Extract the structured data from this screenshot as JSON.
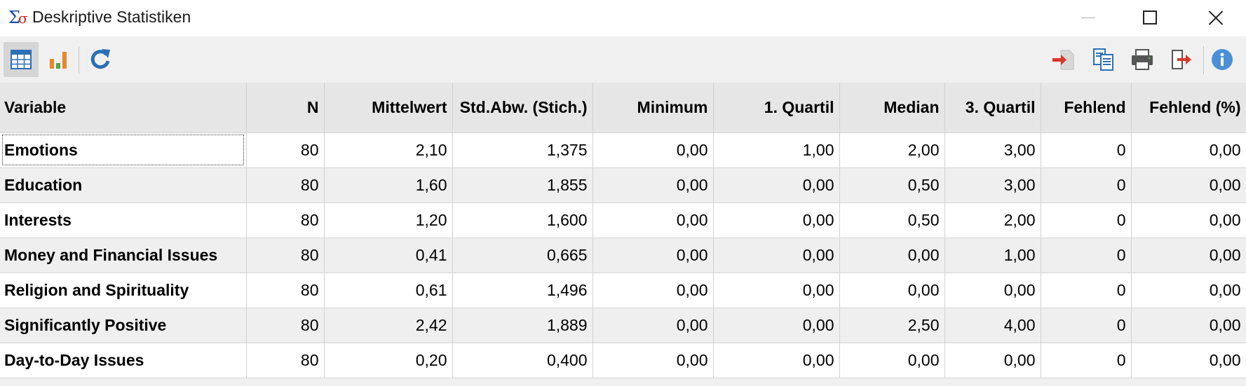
{
  "window": {
    "title": "Deskriptive Statistiken",
    "app_icon_glyphs": [
      "Σ",
      "σ"
    ]
  },
  "toolbar": {
    "left_icons": [
      "table-view-icon",
      "chart-view-icon",
      "refresh-icon"
    ],
    "right_icons": [
      "import-icon",
      "copy-icon",
      "print-icon",
      "export-icon",
      "info-icon"
    ],
    "colors": {
      "accent_blue": "#2c6fb7",
      "export_red": "#d9382b",
      "chart_orange": "#e8862a",
      "chart_green": "#56a548"
    }
  },
  "table": {
    "columns": [
      "Variable",
      "N",
      "Mittelwert",
      "Std.Abw. (Stich.)",
      "Minimum",
      "1. Quartil",
      "Median",
      "3. Quartil",
      "Fehlend",
      "Fehlend (%)"
    ],
    "rows": [
      [
        "Emotions",
        "80",
        "2,10",
        "1,375",
        "0,00",
        "1,00",
        "2,00",
        "3,00",
        "0",
        "0,00"
      ],
      [
        "Education",
        "80",
        "1,60",
        "1,855",
        "0,00",
        "0,00",
        "0,50",
        "3,00",
        "0",
        "0,00"
      ],
      [
        "Interests",
        "80",
        "1,20",
        "1,600",
        "0,00",
        "0,00",
        "0,50",
        "2,00",
        "0",
        "0,00"
      ],
      [
        "Money and Financial Issues",
        "80",
        "0,41",
        "0,665",
        "0,00",
        "0,00",
        "0,00",
        "1,00",
        "0",
        "0,00"
      ],
      [
        "Religion and Spirituality",
        "80",
        "0,61",
        "1,496",
        "0,00",
        "0,00",
        "0,00",
        "0,00",
        "0",
        "0,00"
      ],
      [
        "Significantly Positive",
        "80",
        "2,42",
        "1,889",
        "0,00",
        "0,00",
        "2,50",
        "4,00",
        "0",
        "0,00"
      ],
      [
        "Day-to-Day Issues",
        "80",
        "0,20",
        "0,400",
        "0,00",
        "0,00",
        "0,00",
        "0,00",
        "0",
        "0,00"
      ]
    ]
  }
}
